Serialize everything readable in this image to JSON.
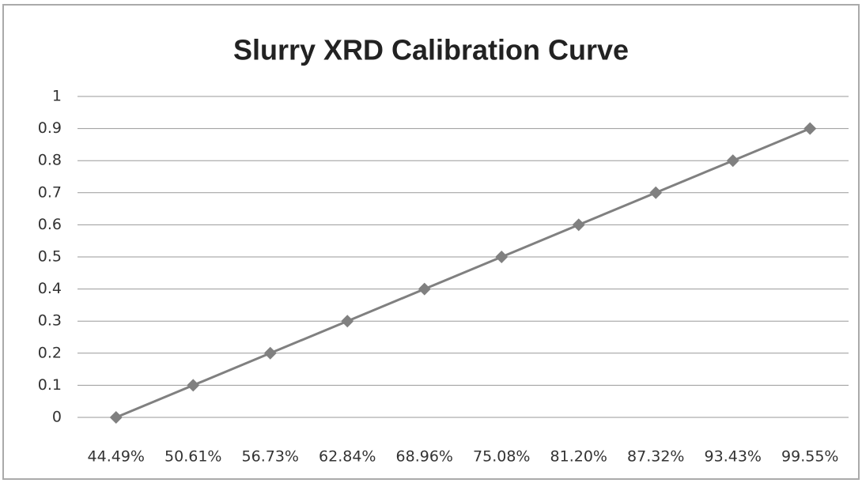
{
  "chart_data": {
    "type": "line",
    "title": "Slurry XRD Calibration Curve",
    "categories": [
      "44.49%",
      "50.61%",
      "56.73%",
      "62.84%",
      "68.96%",
      "75.08%",
      "81.20%",
      "87.32%",
      "93.43%",
      "99.55%"
    ],
    "values": [
      0,
      0.1,
      0.2,
      0.3,
      0.4,
      0.5,
      0.6,
      0.7,
      0.8,
      0.9
    ],
    "color": "#808080",
    "ylim": [
      0,
      1
    ],
    "yticks": [
      0,
      0.1,
      0.2,
      0.3,
      0.4,
      0.5,
      0.6,
      0.7,
      0.8,
      0.9,
      1
    ],
    "grid": true
  }
}
